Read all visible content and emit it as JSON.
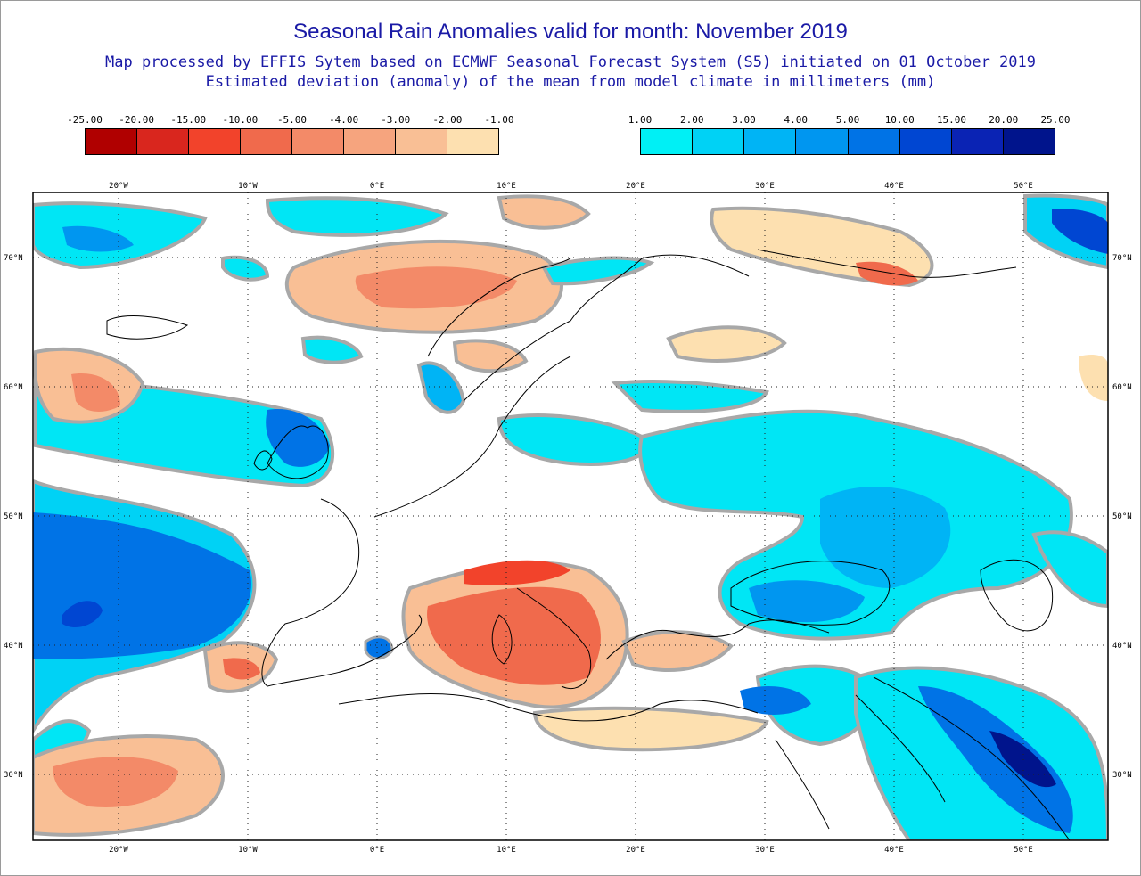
{
  "title": "Seasonal Rain Anomalies valid for month: November 2019",
  "subtitle_line1": "Map processed by EFFIS Sytem based on ECMWF Seasonal Forecast System (S5) initiated on 01 October 2019",
  "subtitle_line2": "Estimated deviation (anomaly) of the mean from model climate in millimeters (mm)",
  "legend_negative": {
    "labels": [
      "-25.00",
      "-20.00",
      "-15.00",
      "-10.00",
      "-5.00",
      "-4.00",
      "-3.00",
      "-2.00",
      "-1.00"
    ],
    "colors": [
      "#b00000",
      "#d9261e",
      "#f2432b",
      "#f06a4c",
      "#f38a68",
      "#f6a47e",
      "#f9bf95",
      "#fde0b0"
    ]
  },
  "legend_positive": {
    "labels": [
      "1.00",
      "2.00",
      "3.00",
      "4.00",
      "5.00",
      "10.00",
      "15.00",
      "20.00",
      "25.00"
    ],
    "colors": [
      "#00f0f5",
      "#00d2f5",
      "#00b4f5",
      "#0096f0",
      "#0073e6",
      "#0046d2",
      "#0a23b4",
      "#00148c"
    ]
  },
  "map": {
    "lon_labels": [
      "20°W",
      "10°W",
      "0°E",
      "10°E",
      "20°E",
      "30°E",
      "40°E",
      "50°E"
    ],
    "lat_labels": [
      "70°N",
      "60°N",
      "50°N",
      "40°N",
      "30°N"
    ]
  }
}
